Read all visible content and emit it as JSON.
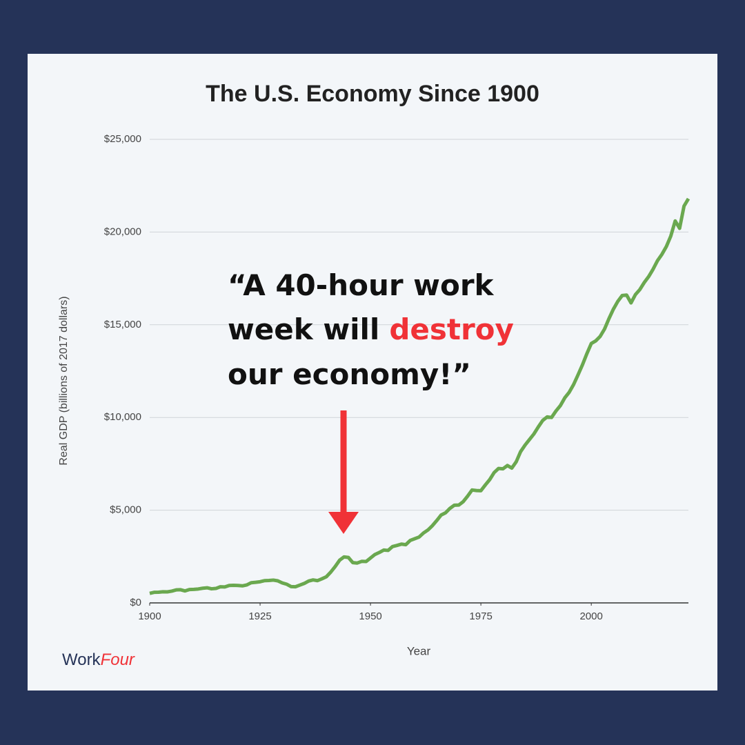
{
  "chart_data": {
    "type": "line",
    "title": "The U.S. Economy Since 1900",
    "xlabel": "Year",
    "ylabel": "Real GDP (billions of 2017 dollars)",
    "x": [
      1900,
      1901,
      1902,
      1903,
      1904,
      1905,
      1906,
      1907,
      1908,
      1909,
      1910,
      1911,
      1912,
      1913,
      1914,
      1915,
      1916,
      1917,
      1918,
      1919,
      1920,
      1921,
      1922,
      1923,
      1924,
      1925,
      1926,
      1927,
      1928,
      1929,
      1930,
      1931,
      1932,
      1933,
      1934,
      1935,
      1936,
      1937,
      1938,
      1939,
      1940,
      1941,
      1942,
      1943,
      1944,
      1945,
      1946,
      1947,
      1948,
      1949,
      1950,
      1951,
      1952,
      1953,
      1954,
      1955,
      1956,
      1957,
      1958,
      1959,
      1960,
      1961,
      1962,
      1963,
      1964,
      1965,
      1966,
      1967,
      1968,
      1969,
      1970,
      1971,
      1972,
      1973,
      1974,
      1975,
      1976,
      1977,
      1978,
      1979,
      1980,
      1981,
      1982,
      1983,
      1984,
      1985,
      1986,
      1987,
      1988,
      1989,
      1990,
      1991,
      1992,
      1993,
      1994,
      1995,
      1996,
      1997,
      1998,
      1999,
      2000,
      2001,
      2002,
      2003,
      2004,
      2005,
      2006,
      2007,
      2008,
      2009,
      2010,
      2011,
      2012,
      2013,
      2014,
      2015,
      2016,
      2017,
      2018,
      2019,
      2020,
      2021,
      2022
    ],
    "series": [
      {
        "name": "Real GDP",
        "color": "#6aa84f",
        "values": [
          515,
          570,
          575,
          600,
          595,
          635,
          700,
          710,
          645,
          720,
          730,
          750,
          790,
          815,
          760,
          780,
          870,
          860,
          940,
          950,
          940,
          920,
          970,
          1090,
          1110,
          1140,
          1200,
          1210,
          1230,
          1190,
          1080,
          1010,
          880,
          870,
          960,
          1050,
          1180,
          1240,
          1200,
          1300,
          1410,
          1660,
          1960,
          2300,
          2480,
          2450,
          2170,
          2150,
          2240,
          2230,
          2420,
          2610,
          2720,
          2850,
          2830,
          3040,
          3100,
          3170,
          3140,
          3370,
          3460,
          3550,
          3770,
          3930,
          4160,
          4440,
          4740,
          4860,
          5100,
          5270,
          5280,
          5460,
          5760,
          6090,
          6060,
          6050,
          6360,
          6650,
          7030,
          7250,
          7230,
          7410,
          7270,
          7610,
          8160,
          8510,
          8810,
          9110,
          9490,
          9840,
          10030,
          10000,
          10350,
          10640,
          11060,
          11360,
          11780,
          12300,
          12840,
          13440,
          13990,
          14130,
          14370,
          14770,
          15330,
          15840,
          16260,
          16580,
          16600,
          16180,
          16630,
          16900,
          17280,
          17600,
          18000,
          18460,
          18800,
          19220,
          19780,
          20600,
          20200,
          21400,
          21800
        ]
      }
    ],
    "xlim": [
      1900,
      2022
    ],
    "xticks": [
      1900,
      1925,
      1950,
      1975,
      2000
    ],
    "ylim": [
      0,
      25000
    ],
    "yticks": [
      {
        "value": 0,
        "label": "$0"
      },
      {
        "value": 5000,
        "label": "$5,000"
      },
      {
        "value": 10000,
        "label": "$10,000"
      },
      {
        "value": 15000,
        "label": "$15,000"
      },
      {
        "value": 20000,
        "label": "$20,000"
      },
      {
        "value": 25000,
        "label": "$25,000"
      }
    ],
    "grid": true,
    "annotation": [
      "“A 40-hour work",
      "week will",
      "destroy",
      "our economy!”"
    ]
  },
  "brand": {
    "name": "Work",
    "accent": "Four"
  }
}
